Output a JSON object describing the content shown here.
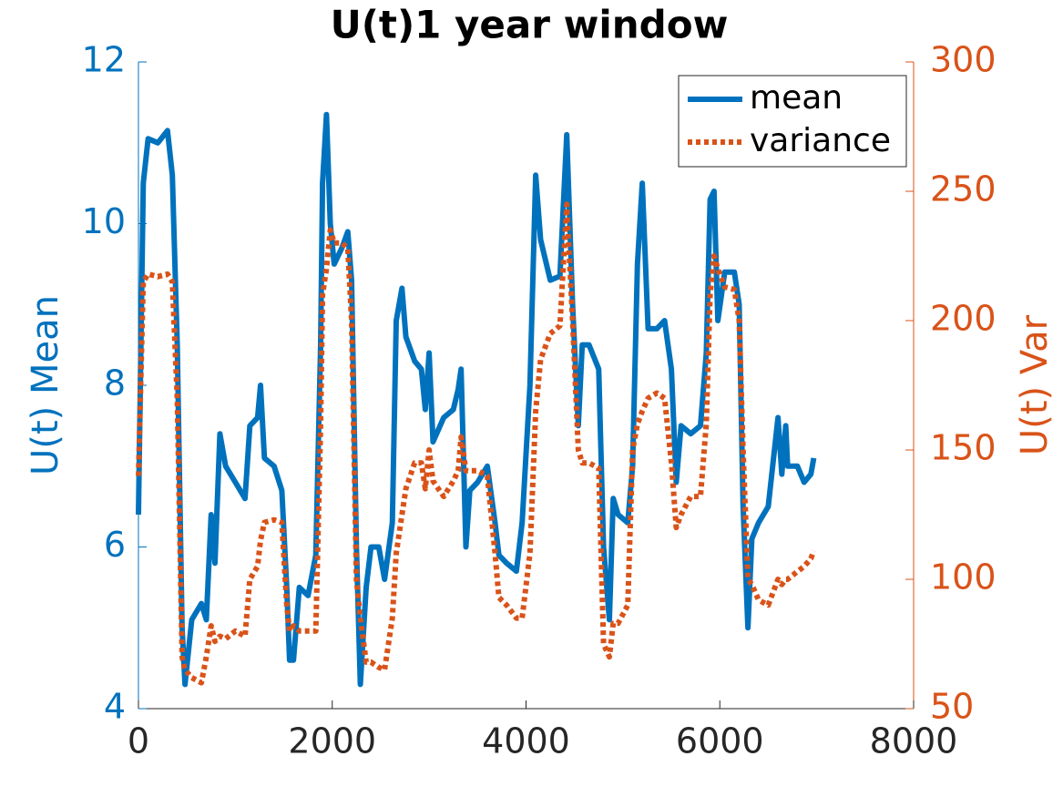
{
  "chart_data": {
    "type": "line",
    "title": "U(t)1 year window",
    "y_label": "U(t) Mean",
    "y2_label": "U(t) Var",
    "xlim": [
      0,
      8000
    ],
    "xticks": [
      0,
      2000,
      4000,
      6000,
      8000
    ],
    "ylim": [
      4,
      12
    ],
    "yticks": [
      4,
      6,
      8,
      10,
      12
    ],
    "y2lim": [
      50,
      300
    ],
    "y2ticks": [
      50,
      100,
      150,
      200,
      250,
      300
    ],
    "legend": "northeast",
    "x": [
      0,
      50,
      100,
      200,
      300,
      350,
      400,
      450,
      480,
      550,
      650,
      700,
      750,
      790,
      840,
      900,
      1000,
      1100,
      1150,
      1230,
      1260,
      1300,
      1400,
      1480,
      1530,
      1560,
      1600,
      1660,
      1750,
      1830,
      1880,
      1900,
      1940,
      1980,
      2020,
      2100,
      2160,
      2200,
      2250,
      2290,
      2350,
      2400,
      2480,
      2540,
      2620,
      2660,
      2720,
      2760,
      2850,
      2920,
      2960,
      3000,
      3040,
      3150,
      3250,
      3300,
      3330,
      3380,
      3420,
      3500,
      3600,
      3680,
      3720,
      3800,
      3900,
      3960,
      4040,
      4100,
      4150,
      4250,
      4350,
      4420,
      4480,
      4540,
      4580,
      4650,
      4750,
      4800,
      4860,
      4900,
      4950,
      5050,
      5100,
      5150,
      5200,
      5260,
      5350,
      5430,
      5500,
      5550,
      5600,
      5700,
      5800,
      5860,
      5900,
      5940,
      5980,
      6050,
      6150,
      6200,
      6240,
      6290,
      6330,
      6400,
      6500,
      6600,
      6640,
      6680,
      6700,
      6800,
      6870,
      6940,
      6970
    ],
    "series": [
      {
        "name": "mean",
        "color": "#0072bd",
        "line_style": "solid",
        "values": [
          6.4,
          10.5,
          11.05,
          11.0,
          11.15,
          10.6,
          8.5,
          5.0,
          4.3,
          5.1,
          5.3,
          5.1,
          6.4,
          5.8,
          7.4,
          7.0,
          6.8,
          6.6,
          7.5,
          7.6,
          8.0,
          7.1,
          7.0,
          6.7,
          5.5,
          4.6,
          4.6,
          5.5,
          5.4,
          5.9,
          8.5,
          10.5,
          11.35,
          10.0,
          9.5,
          9.7,
          9.9,
          9.3,
          6.0,
          4.3,
          5.5,
          6.0,
          6.0,
          5.6,
          6.3,
          8.8,
          9.2,
          8.6,
          8.3,
          8.2,
          7.7,
          8.4,
          7.3,
          7.6,
          7.7,
          7.95,
          8.2,
          6.0,
          6.7,
          6.8,
          7.0,
          6.3,
          5.9,
          5.8,
          5.7,
          6.3,
          8.0,
          10.6,
          9.8,
          9.3,
          9.35,
          11.1,
          9.0,
          7.5,
          8.5,
          8.5,
          8.2,
          6.0,
          5.1,
          6.6,
          6.4,
          6.3,
          7.0,
          9.5,
          10.5,
          8.7,
          8.7,
          8.8,
          8.2,
          6.8,
          7.5,
          7.4,
          7.5,
          8.4,
          10.3,
          10.4,
          8.8,
          9.4,
          9.4,
          9.0,
          6.5,
          5.0,
          6.1,
          6.3,
          6.5,
          7.6,
          6.9,
          7.5,
          7.0,
          7.0,
          6.8,
          6.9,
          7.1
        ]
      },
      {
        "name": "variance",
        "color": "#d95319",
        "line_style": "dotted",
        "axis": "y2",
        "values": [
          140,
          215,
          218,
          217,
          218,
          215,
          170,
          70,
          65,
          62,
          60,
          70,
          82,
          76,
          78,
          77,
          80,
          78,
          100,
          105,
          115,
          122,
          123,
          122,
          90,
          80,
          82,
          80,
          80,
          80,
          160,
          210,
          220,
          235,
          230,
          230,
          228,
          200,
          100,
          85,
          68,
          68,
          66,
          65,
          85,
          110,
          125,
          135,
          145,
          145,
          135,
          150,
          138,
          132,
          138,
          142,
          155,
          142,
          142,
          142,
          140,
          110,
          93,
          90,
          85,
          85,
          110,
          165,
          185,
          195,
          198,
          245,
          200,
          150,
          145,
          145,
          143,
          75,
          70,
          83,
          83,
          90,
          150,
          160,
          165,
          170,
          172,
          170,
          145,
          120,
          125,
          132,
          132,
          160,
          210,
          225,
          220,
          213,
          212,
          200,
          150,
          100,
          98,
          92,
          90,
          100,
          98,
          100,
          100,
          103,
          105,
          108,
          111
        ]
      }
    ]
  }
}
